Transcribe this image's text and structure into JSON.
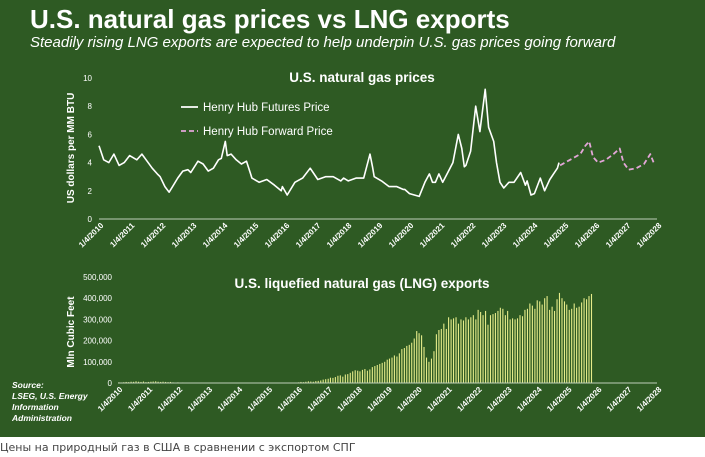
{
  "header": {
    "title": "U.S. natural gas prices vs LNG exports",
    "subtitle": "Steadily rising LNG exports are expected to help underpin U.S. gas prices going forward"
  },
  "source": {
    "label": "Source:",
    "text": "LSEG, U.S. Energy Information Administration"
  },
  "caption": "Цены на природный газ в США в сравнении с экспортом СПГ",
  "colors": {
    "background": "#2e5a23",
    "futures_line": "#ffffff",
    "forward_line": "#e3a6d8",
    "bars": "#e6ec8a"
  },
  "chart_data": [
    {
      "type": "line",
      "title": "U.S. natural gas prices",
      "ylabel": "US dollars per MM BTU",
      "xlabel": "",
      "ylim": [
        0,
        10
      ],
      "yticks": [
        "0",
        "2",
        "4",
        "6",
        "8",
        "10"
      ],
      "xlim": [
        "2010-01-04",
        "2028-04-04"
      ],
      "xticks": [
        "1/4/2010",
        "1/4/2011",
        "1/4/2012",
        "1/4/2013",
        "1/4/2014",
        "1/4/2015",
        "1/4/2016",
        "1/4/2017",
        "1/4/2018",
        "1/4/2019",
        "1/4/2020",
        "1/4/2021",
        "1/4/2022",
        "1/4/2023",
        "1/4/2024",
        "1/4/2025",
        "1/4/2026",
        "1/4/2027",
        "1/4/2028"
      ],
      "legend_position": "top-left",
      "grid": false,
      "series": [
        {
          "name": "Henry Hub Futures Price",
          "style": "solid",
          "points": [
            [
              "2010-01-04",
              5.2
            ],
            [
              "2010-03-01",
              4.2
            ],
            [
              "2010-05-01",
              4.0
            ],
            [
              "2010-07-01",
              4.6
            ],
            [
              "2010-09-01",
              3.8
            ],
            [
              "2010-11-01",
              4.0
            ],
            [
              "2011-01-04",
              4.5
            ],
            [
              "2011-04-01",
              4.2
            ],
            [
              "2011-06-01",
              4.6
            ],
            [
              "2011-08-01",
              4.1
            ],
            [
              "2011-10-01",
              3.6
            ],
            [
              "2011-12-01",
              3.2
            ],
            [
              "2012-01-04",
              3.0
            ],
            [
              "2012-03-01",
              2.3
            ],
            [
              "2012-04-20",
              1.9
            ],
            [
              "2012-06-01",
              2.3
            ],
            [
              "2012-08-01",
              2.9
            ],
            [
              "2012-10-01",
              3.4
            ],
            [
              "2012-12-01",
              3.5
            ],
            [
              "2013-01-04",
              3.3
            ],
            [
              "2013-04-01",
              4.1
            ],
            [
              "2013-06-01",
              3.9
            ],
            [
              "2013-08-01",
              3.4
            ],
            [
              "2013-10-01",
              3.6
            ],
            [
              "2013-12-01",
              4.2
            ],
            [
              "2014-01-04",
              4.3
            ],
            [
              "2014-02-20",
              5.5
            ],
            [
              "2014-03-15",
              4.5
            ],
            [
              "2014-05-01",
              4.6
            ],
            [
              "2014-07-01",
              4.2
            ],
            [
              "2014-09-01",
              3.9
            ],
            [
              "2014-11-01",
              4.1
            ],
            [
              "2014-12-20",
              3.2
            ],
            [
              "2015-01-04",
              2.9
            ],
            [
              "2015-04-01",
              2.6
            ],
            [
              "2015-07-01",
              2.8
            ],
            [
              "2015-10-01",
              2.4
            ],
            [
              "2015-12-20",
              2.0
            ],
            [
              "2016-01-04",
              2.3
            ],
            [
              "2016-03-01",
              1.7
            ],
            [
              "2016-06-01",
              2.6
            ],
            [
              "2016-09-01",
              2.9
            ],
            [
              "2016-12-01",
              3.6
            ],
            [
              "2017-01-04",
              3.3
            ],
            [
              "2017-03-01",
              2.8
            ],
            [
              "2017-06-01",
              3.0
            ],
            [
              "2017-09-01",
              3.0
            ],
            [
              "2017-12-01",
              2.7
            ],
            [
              "2018-01-04",
              2.9
            ],
            [
              "2018-03-01",
              2.7
            ],
            [
              "2018-06-01",
              2.9
            ],
            [
              "2018-09-01",
              2.9
            ],
            [
              "2018-11-15",
              4.6
            ],
            [
              "2018-12-15",
              3.7
            ],
            [
              "2019-01-04",
              3.0
            ],
            [
              "2019-04-01",
              2.7
            ],
            [
              "2019-07-01",
              2.3
            ],
            [
              "2019-10-01",
              2.3
            ],
            [
              "2019-12-15",
              2.1
            ],
            [
              "2020-01-04",
              2.1
            ],
            [
              "2020-03-01",
              1.8
            ],
            [
              "2020-06-25",
              1.6
            ],
            [
              "2020-09-01",
              2.6
            ],
            [
              "2020-10-25",
              3.2
            ],
            [
              "2020-12-01",
              2.6
            ],
            [
              "2021-01-04",
              2.6
            ],
            [
              "2021-02-15",
              3.2
            ],
            [
              "2021-04-01",
              2.6
            ],
            [
              "2021-06-01",
              3.3
            ],
            [
              "2021-08-01",
              4.0
            ],
            [
              "2021-10-05",
              6.0
            ],
            [
              "2021-11-15",
              5.0
            ],
            [
              "2021-12-15",
              3.7
            ],
            [
              "2022-01-04",
              3.8
            ],
            [
              "2022-03-01",
              4.8
            ],
            [
              "2022-05-01",
              8.0
            ],
            [
              "2022-06-20",
              6.2
            ],
            [
              "2022-08-22",
              9.2
            ],
            [
              "2022-10-01",
              6.5
            ],
            [
              "2022-12-01",
              5.5
            ],
            [
              "2023-01-04",
              4.0
            ],
            [
              "2023-02-15",
              2.6
            ],
            [
              "2023-04-01",
              2.2
            ],
            [
              "2023-06-01",
              2.6
            ],
            [
              "2023-08-01",
              2.6
            ],
            [
              "2023-10-20",
              3.3
            ],
            [
              "2023-12-15",
              2.4
            ],
            [
              "2024-01-04",
              2.7
            ],
            [
              "2024-02-20",
              1.7
            ],
            [
              "2024-04-01",
              1.8
            ],
            [
              "2024-06-10",
              2.9
            ],
            [
              "2024-08-01",
              2.0
            ],
            [
              "2024-10-01",
              2.8
            ],
            [
              "2024-11-15",
              3.2
            ],
            [
              "2024-12-31",
              3.6
            ],
            [
              "2025-01-20",
              4.0
            ]
          ]
        },
        {
          "name": "Henry Hub Forward Price",
          "style": "dashed",
          "points": [
            [
              "2025-02-01",
              3.8
            ],
            [
              "2025-04-01",
              4.0
            ],
            [
              "2025-07-01",
              4.3
            ],
            [
              "2025-10-01",
              4.6
            ],
            [
              "2025-12-01",
              5.2
            ],
            [
              "2026-01-15",
              5.5
            ],
            [
              "2026-03-01",
              4.4
            ],
            [
              "2026-05-01",
              4.0
            ],
            [
              "2026-08-01",
              4.2
            ],
            [
              "2026-11-01",
              4.6
            ],
            [
              "2027-01-15",
              5.0
            ],
            [
              "2027-03-01",
              4.0
            ],
            [
              "2027-05-01",
              3.5
            ],
            [
              "2027-08-01",
              3.6
            ],
            [
              "2027-11-01",
              3.9
            ],
            [
              "2028-01-15",
              4.6
            ],
            [
              "2028-03-01",
              3.9
            ]
          ]
        }
      ]
    },
    {
      "type": "bar",
      "title": "U.S. liquefied natural gas (LNG) exports",
      "ylabel": "Mln Cubic Feet",
      "xlabel": "",
      "ylim": [
        0,
        500000
      ],
      "yticks": [
        "0",
        "100,000",
        "200,000",
        "300,000",
        "400,000",
        "500,000"
      ],
      "xlim": [
        "2010-01-04",
        "2028-04-04"
      ],
      "xticks": [
        "1/4/2010",
        "1/4/2011",
        "1/4/2012",
        "1/4/2013",
        "1/4/2014",
        "1/4/2015",
        "1/4/2016",
        "1/4/2017",
        "1/4/2018",
        "1/4/2019",
        "1/4/2020",
        "1/4/2021",
        "1/4/2022",
        "1/4/2023",
        "1/4/2024",
        "1/4/2025",
        "1/4/2026",
        "1/4/2027",
        "1/4/2028"
      ],
      "grid": false,
      "series": [
        {
          "name": "",
          "year_start": 2010,
          "values": [
            3000,
            2500,
            3500,
            5000,
            4000,
            6000,
            5500,
            8000,
            6000,
            5000,
            7000,
            4000,
            5000,
            6000,
            7000,
            8000,
            6000,
            5000,
            6000,
            5000,
            4000,
            5000,
            3000,
            2000,
            3000,
            2000,
            2500,
            1500,
            2000,
            1500,
            1000,
            1500,
            1000,
            2000,
            1500,
            1000,
            1500,
            1000,
            1500,
            1000,
            1000,
            1500,
            1000,
            1500,
            1000,
            1000,
            1500,
            1000,
            1000,
            1500,
            1000,
            2000,
            1500,
            1000,
            1500,
            1000,
            1000,
            1500,
            1000,
            500,
            1000,
            500,
            1000,
            500,
            1000,
            1500,
            1000,
            1500,
            1000,
            2000,
            1500,
            1000,
            1000,
            3000,
            5000,
            4000,
            6000,
            8000,
            7000,
            6000,
            9000,
            10000,
            12000,
            16000,
            18000,
            20000,
            25000,
            24000,
            28000,
            34000,
            36000,
            30000,
            40000,
            42000,
            48000,
            55000,
            60000,
            58000,
            55000,
            62000,
            66000,
            58000,
            64000,
            75000,
            80000,
            85000,
            90000,
            95000,
            100000,
            110000,
            115000,
            120000,
            130000,
            125000,
            140000,
            160000,
            165000,
            175000,
            180000,
            190000,
            210000,
            245000,
            235000,
            225000,
            170000,
            120000,
            100000,
            115000,
            150000,
            230000,
            250000,
            255000,
            280000,
            255000,
            310000,
            300000,
            305000,
            310000,
            280000,
            300000,
            295000,
            310000,
            300000,
            310000,
            320000,
            300000,
            345000,
            335000,
            320000,
            340000,
            275000,
            320000,
            325000,
            330000,
            340000,
            355000,
            350000,
            320000,
            340000,
            300000,
            305000,
            300000,
            305000,
            320000,
            315000,
            345000,
            350000,
            375000,
            365000,
            350000,
            390000,
            385000,
            370000,
            400000,
            410000,
            345000,
            360000,
            340000,
            395000,
            425000,
            400000,
            385000,
            370000,
            345000,
            350000,
            375000,
            355000,
            360000,
            380000,
            400000,
            395000,
            410000,
            420000
          ]
        }
      ]
    }
  ]
}
